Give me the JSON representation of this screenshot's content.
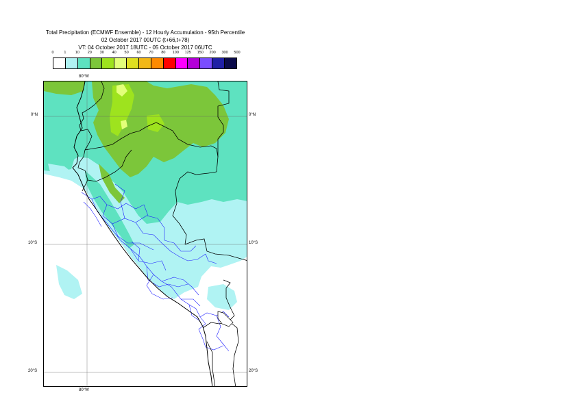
{
  "title": {
    "line1": "Total Precipitation (ECMWF Ensemble) - 12 Hourly Accumulation - 95th Percentile",
    "line2": "02 October 2017 00UTC (t+66,t+78)",
    "line3": "VT: 04 October 2017 18UTC - 05 October 2017 06UTC"
  },
  "legend": {
    "labels": [
      "0",
      "1",
      "10",
      "20",
      "30",
      "40",
      "50",
      "60",
      "70",
      "80",
      "100",
      "125",
      "150",
      "200",
      "300",
      "500"
    ],
    "colors": [
      "#ffffff",
      "#b0f3f3",
      "#5ee2c0",
      "#7cc63a",
      "#9ee31e",
      "#e3ff7a",
      "#e0e020",
      "#f3b817",
      "#ff8a00",
      "#ff0000",
      "#ff00ff",
      "#b400d8",
      "#7a4cff",
      "#2020a6",
      "#0a0a4a"
    ]
  },
  "axes": {
    "top_lon": "80°W",
    "bottom_lon": "80°W",
    "lat_0_left": "0°N",
    "lat_0_right": "0°N",
    "lat_10_left": "10°S",
    "lat_10_right": "10°S",
    "lat_20_left": "20°S",
    "lat_20_right": "20°S"
  },
  "map": {
    "region": "Peru / Ecuador / Colombia",
    "colors": {
      "sea": "#ffffff",
      "light": "#b0f3f3",
      "teal": "#5ee2c0",
      "green": "#7cc63a",
      "lime": "#9ee31e",
      "yellow": "#e3ff7a",
      "border": "#000000",
      "admin": "#2020ff"
    }
  }
}
